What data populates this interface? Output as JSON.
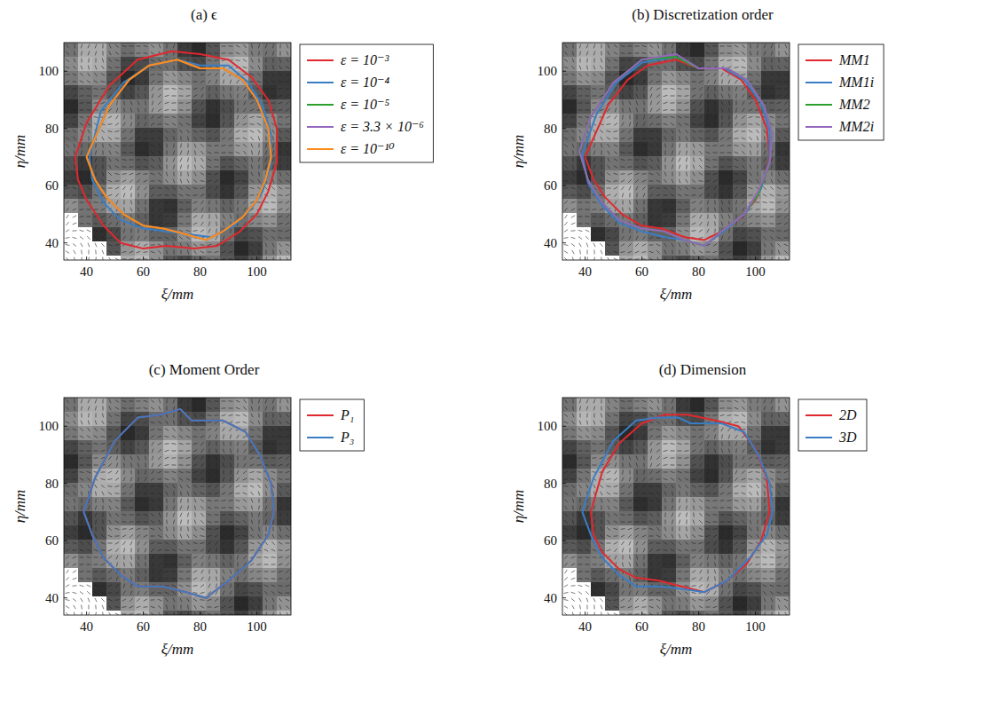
{
  "chart_data": [
    {
      "type": "line",
      "title": "(a)  ϵ",
      "x_label": "ξ/mm",
      "y_label": "η/mm",
      "xlim": [
        32,
        112
      ],
      "ylim": [
        34,
        110
      ],
      "xticks": [
        40,
        60,
        80,
        100
      ],
      "yticks": [
        40,
        60,
        80,
        100
      ],
      "legend": "right",
      "series": [
        {
          "name": "ε = 10⁻³",
          "color": "#e0282e",
          "x": [
            36,
            40,
            48,
            58,
            70,
            80,
            90,
            98,
            104,
            107,
            107,
            104,
            100,
            94,
            86,
            78,
            68,
            60,
            52,
            46,
            40,
            37,
            36
          ],
          "y": [
            70,
            82,
            95,
            104,
            107,
            106,
            104,
            98,
            90,
            80,
            68,
            58,
            50,
            44,
            39,
            38,
            39,
            38,
            40,
            46,
            55,
            62,
            70
          ]
        },
        {
          "name": "ε = 10⁻⁴",
          "color": "#3b7dc4",
          "x": [
            41,
            45,
            53,
            62,
            72,
            80,
            90,
            97,
            102,
            105,
            105,
            102,
            98,
            92,
            84,
            76,
            68,
            60,
            52,
            46,
            42,
            41
          ],
          "y": [
            70,
            86,
            96,
            102,
            104,
            102,
            102,
            96,
            88,
            78,
            68,
            58,
            52,
            46,
            42,
            43,
            44,
            45,
            48,
            54,
            62,
            70
          ]
        },
        {
          "name": "ε = 10⁻⁵",
          "color": "#2ca02c",
          "x": [
            40,
            48,
            55,
            62,
            72,
            80,
            88,
            95,
            100,
            104,
            105,
            103,
            100,
            95,
            88,
            82,
            75,
            67,
            60,
            53,
            47,
            43,
            40
          ],
          "y": [
            70,
            88,
            97,
            102,
            104,
            101,
            101,
            97,
            90,
            80,
            70,
            62,
            55,
            49,
            44,
            41,
            43,
            45,
            46,
            50,
            56,
            62,
            70
          ]
        },
        {
          "name": "ε = 3.3 × 10⁻⁶",
          "color": "#9467bd",
          "x": [
            40,
            48,
            55,
            62,
            72,
            80,
            88,
            95,
            100,
            104,
            105,
            103,
            100,
            95,
            88,
            82,
            75,
            67,
            60,
            53,
            47,
            43,
            40
          ],
          "y": [
            70,
            88,
            97,
            102,
            104,
            101,
            101,
            97,
            90,
            80,
            70,
            62,
            55,
            49,
            44,
            41,
            43,
            45,
            46,
            50,
            56,
            62,
            70
          ]
        },
        {
          "name": "ε = 10⁻¹⁰",
          "color": "#ff8c1a",
          "x": [
            40,
            48,
            55,
            62,
            72,
            80,
            88,
            95,
            100,
            104,
            105,
            103,
            100,
            95,
            88,
            82,
            75,
            67,
            60,
            53,
            47,
            43,
            40
          ],
          "y": [
            70,
            88,
            97,
            102,
            104,
            101,
            101,
            97,
            90,
            80,
            70,
            62,
            55,
            49,
            44,
            41,
            43,
            45,
            46,
            50,
            56,
            62,
            70
          ]
        }
      ]
    },
    {
      "type": "line",
      "title": "(b)  Discretization order",
      "x_label": "ξ/mm",
      "y_label": "η/mm",
      "xlim": [
        32,
        112
      ],
      "ylim": [
        34,
        110
      ],
      "xticks": [
        40,
        60,
        80,
        100
      ],
      "yticks": [
        40,
        60,
        80,
        100
      ],
      "legend": "right",
      "series": [
        {
          "name": "MM1",
          "color": "#e0282e",
          "x": [
            40,
            48,
            55,
            62,
            72,
            80,
            88,
            95,
            100,
            104,
            105,
            103,
            100,
            95,
            88,
            82,
            75,
            67,
            60,
            53,
            47,
            43,
            40
          ],
          "y": [
            70,
            88,
            97,
            102,
            104,
            101,
            101,
            97,
            90,
            80,
            70,
            62,
            55,
            49,
            44,
            41,
            42,
            45,
            46,
            50,
            56,
            62,
            70
          ]
        },
        {
          "name": "MM1i",
          "color": "#3b7dc4",
          "x": [
            39,
            44,
            51,
            60,
            72,
            80,
            89,
            96,
            102,
            105,
            105,
            102,
            97,
            90,
            82,
            75,
            68,
            60,
            52,
            46,
            41,
            39
          ],
          "y": [
            71,
            85,
            96,
            103,
            105,
            101,
            101,
            97,
            89,
            79,
            69,
            59,
            51,
            45,
            39,
            41,
            42,
            44,
            47,
            53,
            61,
            71
          ]
        },
        {
          "name": "MM2",
          "color": "#2ca02c",
          "x": [
            38,
            42,
            50,
            60,
            72,
            80,
            90,
            97,
            103,
            106,
            105,
            101,
            96,
            88,
            82,
            75,
            68,
            60,
            52,
            46,
            41,
            38
          ],
          "y": [
            72,
            84,
            96,
            104,
            105,
            101,
            101,
            97,
            88,
            78,
            68,
            57,
            50,
            44,
            39,
            41,
            44,
            45,
            48,
            54,
            62,
            72
          ]
        },
        {
          "name": "MM2i",
          "color": "#9467bd",
          "x": [
            38,
            42,
            50,
            60,
            72,
            80,
            90,
            97,
            103,
            106,
            105,
            101,
            96,
            88,
            82,
            75,
            68,
            60,
            52,
            46,
            41,
            38
          ],
          "y": [
            72,
            84,
            96,
            104,
            106,
            101,
            101,
            97,
            88,
            78,
            68,
            58,
            50,
            44,
            39,
            41,
            44,
            45,
            48,
            54,
            62,
            72
          ]
        }
      ]
    },
    {
      "type": "line",
      "title": "(c)  Moment Order",
      "x_label": "ξ/mm",
      "y_label": "η/mm",
      "xlim": [
        32,
        112
      ],
      "ylim": [
        34,
        110
      ],
      "xticks": [
        40,
        60,
        80,
        100
      ],
      "yticks": [
        40,
        60,
        80,
        100
      ],
      "legend": "right",
      "series": [
        {
          "name": "P₁",
          "color": "#e0282e",
          "x": [
            39,
            43,
            50,
            58,
            66,
            73,
            77,
            88,
            96,
            101,
            105,
            106,
            104,
            98,
            90,
            82,
            75,
            67,
            58,
            52,
            46,
            42,
            39
          ],
          "y": [
            70,
            82,
            95,
            103,
            104,
            106,
            102,
            102,
            98,
            90,
            80,
            70,
            62,
            53,
            46,
            40,
            42,
            44,
            44,
            48,
            54,
            62,
            70
          ]
        },
        {
          "name": "P₃",
          "color": "#3b7dc4",
          "x": [
            39,
            43,
            50,
            58,
            66,
            73,
            77,
            88,
            96,
            101,
            105,
            106,
            104,
            98,
            90,
            82,
            75,
            67,
            58,
            52,
            46,
            42,
            39
          ],
          "y": [
            70,
            82,
            95,
            103,
            104,
            106,
            102,
            102,
            98,
            90,
            80,
            70,
            62,
            53,
            46,
            40,
            42,
            44,
            44,
            48,
            54,
            62,
            70
          ]
        }
      ]
    },
    {
      "type": "line",
      "title": "(d)  Dimension",
      "x_label": "ξ/mm",
      "y_label": "η/mm",
      "xlim": [
        32,
        112
      ],
      "ylim": [
        34,
        110
      ],
      "xticks": [
        40,
        60,
        80,
        100
      ],
      "yticks": [
        40,
        60,
        80,
        100
      ],
      "legend": "right",
      "series": [
        {
          "name": "2D",
          "color": "#e0282e",
          "x": [
            42,
            46,
            52,
            60,
            68,
            76,
            86,
            94,
            100,
            104,
            105,
            102,
            97,
            90,
            82,
            74,
            66,
            58,
            52,
            46,
            43,
            42
          ],
          "y": [
            70,
            84,
            94,
            101,
            104,
            104,
            102,
            100,
            92,
            82,
            70,
            60,
            52,
            46,
            42,
            44,
            46,
            47,
            50,
            56,
            62,
            70
          ]
        },
        {
          "name": "3D",
          "color": "#3b7dc4",
          "x": [
            39,
            43,
            50,
            58,
            66,
            73,
            77,
            88,
            96,
            101,
            105,
            106,
            104,
            98,
            90,
            82,
            75,
            67,
            58,
            52,
            46,
            42,
            39
          ],
          "y": [
            70,
            82,
            95,
            102,
            103,
            103,
            101,
            101,
            98,
            90,
            80,
            70,
            62,
            54,
            46,
            42,
            43,
            44,
            44,
            48,
            54,
            62,
            70
          ]
        }
      ]
    }
  ]
}
